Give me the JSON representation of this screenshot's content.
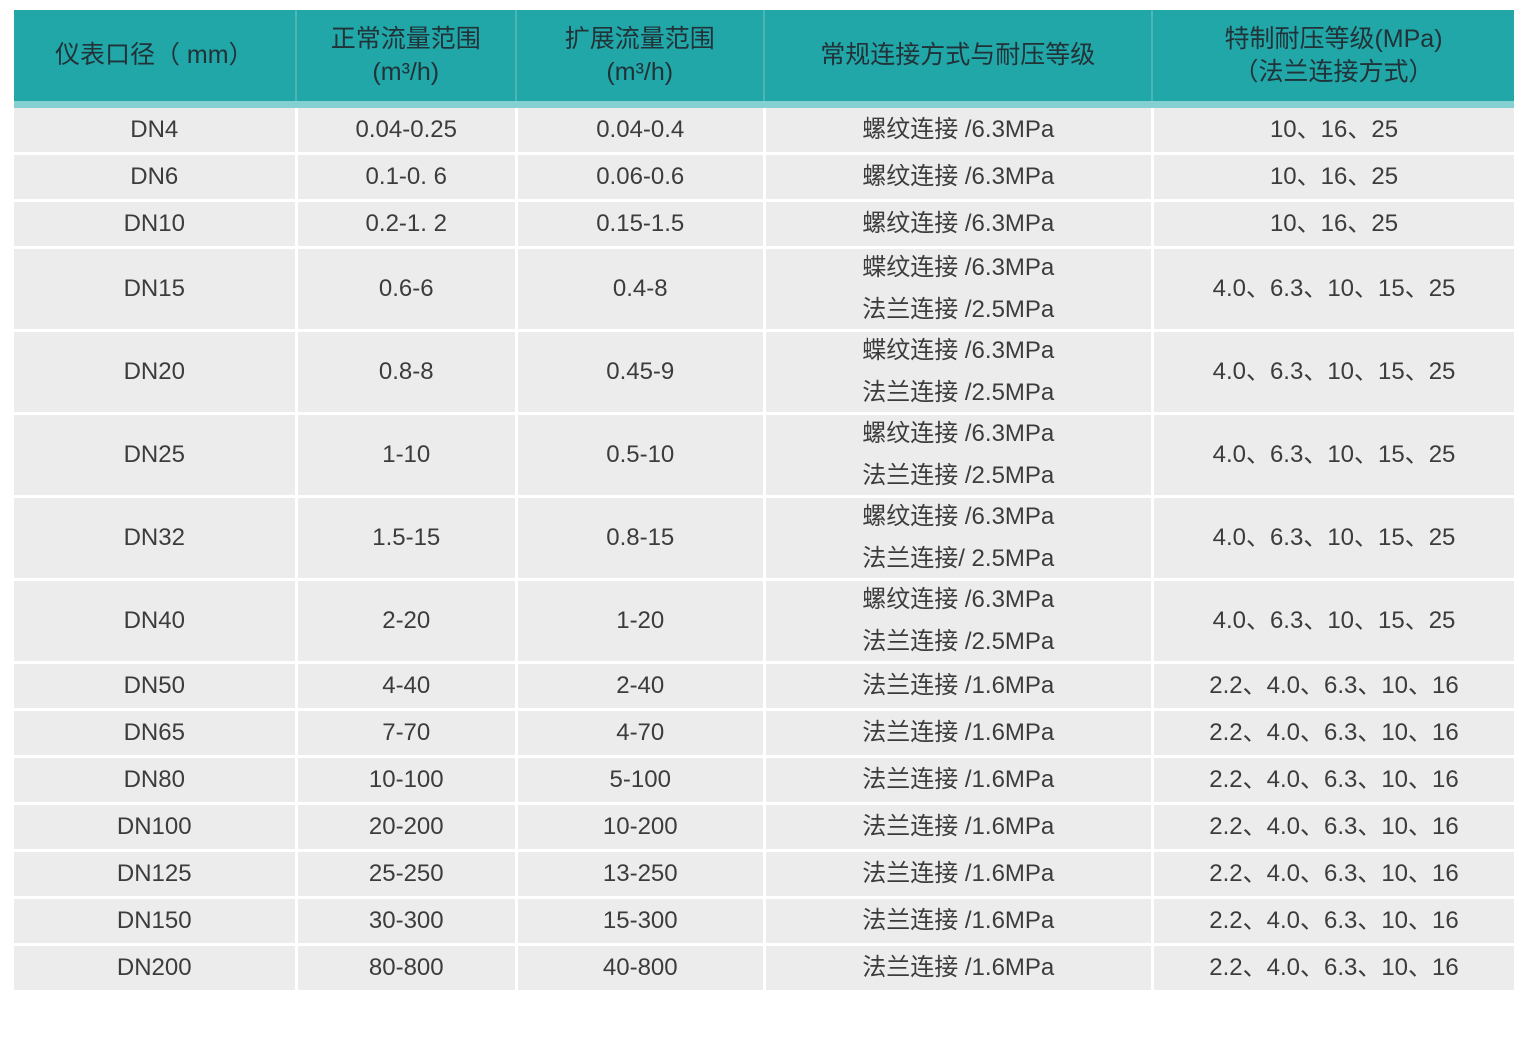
{
  "colors": {
    "header_bg": "#21a7a7",
    "header_strip": "#85d1d1",
    "row_bg": "#ececec",
    "header_text": "#213238",
    "body_text": "#3c3c3c"
  },
  "table": {
    "columns": [
      {
        "title": "仪表口径（ mm）",
        "subtitle": ""
      },
      {
        "title": "正常流量范围",
        "subtitle": "(m³/h)"
      },
      {
        "title": "扩展流量范围",
        "subtitle": "(m³/h)"
      },
      {
        "title": "常规连接方式与耐压等级",
        "subtitle": ""
      },
      {
        "title": "特制耐压等级(MPa)",
        "subtitle": "（法兰连接方式）"
      }
    ],
    "rows": [
      {
        "diameter": "DN4",
        "normal_range": "0.04-0.25",
        "extended_range": "0.04-0.4",
        "connection": [
          "螺纹连接 /6.3MPa"
        ],
        "special_pressure": "10、16、25"
      },
      {
        "diameter": "DN6",
        "normal_range": "0.1-0. 6",
        "extended_range": "0.06-0.6",
        "connection": [
          "螺纹连接 /6.3MPa"
        ],
        "special_pressure": "10、16、25"
      },
      {
        "diameter": "DN10",
        "normal_range": "0.2-1. 2",
        "extended_range": "0.15-1.5",
        "connection": [
          "螺纹连接 /6.3MPa"
        ],
        "special_pressure": "10、16、25"
      },
      {
        "diameter": "DN15",
        "normal_range": "0.6-6",
        "extended_range": "0.4-8",
        "connection": [
          "蝶纹连接 /6.3MPa",
          "法兰连接 /2.5MPa"
        ],
        "special_pressure": "4.0、6.3、10、15、25"
      },
      {
        "diameter": "DN20",
        "normal_range": "0.8-8",
        "extended_range": "0.45-9",
        "connection": [
          "蝶纹连接 /6.3MPa",
          "法兰连接 /2.5MPa"
        ],
        "special_pressure": "4.0、6.3、10、15、25"
      },
      {
        "diameter": "DN25",
        "normal_range": "1-10",
        "extended_range": "0.5-10",
        "connection": [
          "螺纹连接 /6.3MPa",
          "法兰连接 /2.5MPa"
        ],
        "special_pressure": "4.0、6.3、10、15、25"
      },
      {
        "diameter": "DN32",
        "normal_range": "1.5-15",
        "extended_range": "0.8-15",
        "connection": [
          "螺纹连接 /6.3MPa",
          "法兰连接/ 2.5MPa"
        ],
        "special_pressure": "4.0、6.3、10、15、25"
      },
      {
        "diameter": "DN40",
        "normal_range": "2-20",
        "extended_range": "1-20",
        "connection": [
          "螺纹连接 /6.3MPa",
          "法兰连接 /2.5MPa"
        ],
        "special_pressure": "4.0、6.3、10、15、25"
      },
      {
        "diameter": "DN50",
        "normal_range": "4-40",
        "extended_range": "2-40",
        "connection": [
          "法兰连接 /1.6MPa"
        ],
        "special_pressure": "2.2、4.0、6.3、10、16"
      },
      {
        "diameter": "DN65",
        "normal_range": "7-70",
        "extended_range": "4-70",
        "connection": [
          "法兰连接 /1.6MPa"
        ],
        "special_pressure": "2.2、4.0、6.3、10、16"
      },
      {
        "diameter": "DN80",
        "normal_range": "10-100",
        "extended_range": "5-100",
        "connection": [
          "法兰连接 /1.6MPa"
        ],
        "special_pressure": "2.2、4.0、6.3、10、16"
      },
      {
        "diameter": "DN100",
        "normal_range": "20-200",
        "extended_range": "10-200",
        "connection": [
          "法兰连接 /1.6MPa"
        ],
        "special_pressure": "2.2、4.0、6.3、10、16"
      },
      {
        "diameter": "DN125",
        "normal_range": "25-250",
        "extended_range": "13-250",
        "connection": [
          "法兰连接 /1.6MPa"
        ],
        "special_pressure": "2.2、4.0、6.3、10、16"
      },
      {
        "diameter": "DN150",
        "normal_range": "30-300",
        "extended_range": "15-300",
        "connection": [
          "法兰连接 /1.6MPa"
        ],
        "special_pressure": "2.2、4.0、6.3、10、16"
      },
      {
        "diameter": "DN200",
        "normal_range": "80-800",
        "extended_range": "40-800",
        "connection": [
          "法兰连接 /1.6MPa"
        ],
        "special_pressure": "2.2、4.0、6.3、10、16"
      }
    ]
  }
}
